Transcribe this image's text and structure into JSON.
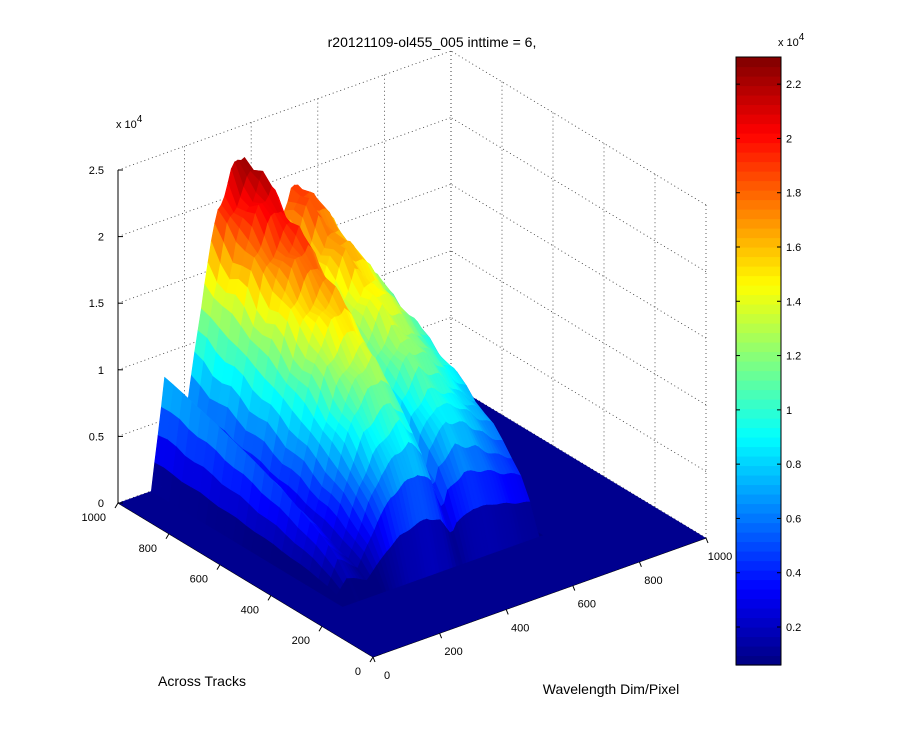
{
  "chart_data": {
    "type": "surface",
    "title": "r20121109-ol455_005 inttime = 6,",
    "xlabel": "Wavelength Dim/Pixel",
    "ylabel": "Across Tracks",
    "zlabel": "",
    "x_range": [
      0,
      1000
    ],
    "y_range": [
      0,
      1000
    ],
    "z_range": [
      0,
      25000
    ],
    "x_ticks": [
      "0",
      "200",
      "400",
      "600",
      "800",
      "1000"
    ],
    "y_ticks": [
      "0",
      "200",
      "400",
      "600",
      "800",
      "1000"
    ],
    "z_ticks": [
      "0",
      "0.5",
      "1",
      "1.5",
      "2",
      "2.5"
    ],
    "z_multiplier": "x 10",
    "z_multiplier_exp": "4",
    "grid": true,
    "colormap": "jet",
    "nonzero_y_range": [
      280,
      1000
    ],
    "background_level": 0,
    "spectrum_profile": {
      "x": [
        0,
        100,
        140,
        160,
        200,
        260,
        300,
        340,
        380,
        420,
        440,
        455,
        470,
        520,
        580,
        640,
        690,
        700,
        1000
      ],
      "peak_z": [
        0,
        0,
        8200,
        7000,
        4000,
        14000,
        19000,
        21500,
        23000,
        20000,
        15000,
        11500,
        16000,
        19500,
        18000,
        15000,
        13000,
        0,
        0
      ]
    },
    "colorbar": {
      "range": [
        600,
        23000
      ],
      "ticks": [
        "0.2",
        "0.4",
        "0.6",
        "0.8",
        "1",
        "1.2",
        "1.4",
        "1.6",
        "1.8",
        "2",
        "2.2"
      ],
      "multiplier": "x 10",
      "multiplier_exp": "4"
    }
  }
}
